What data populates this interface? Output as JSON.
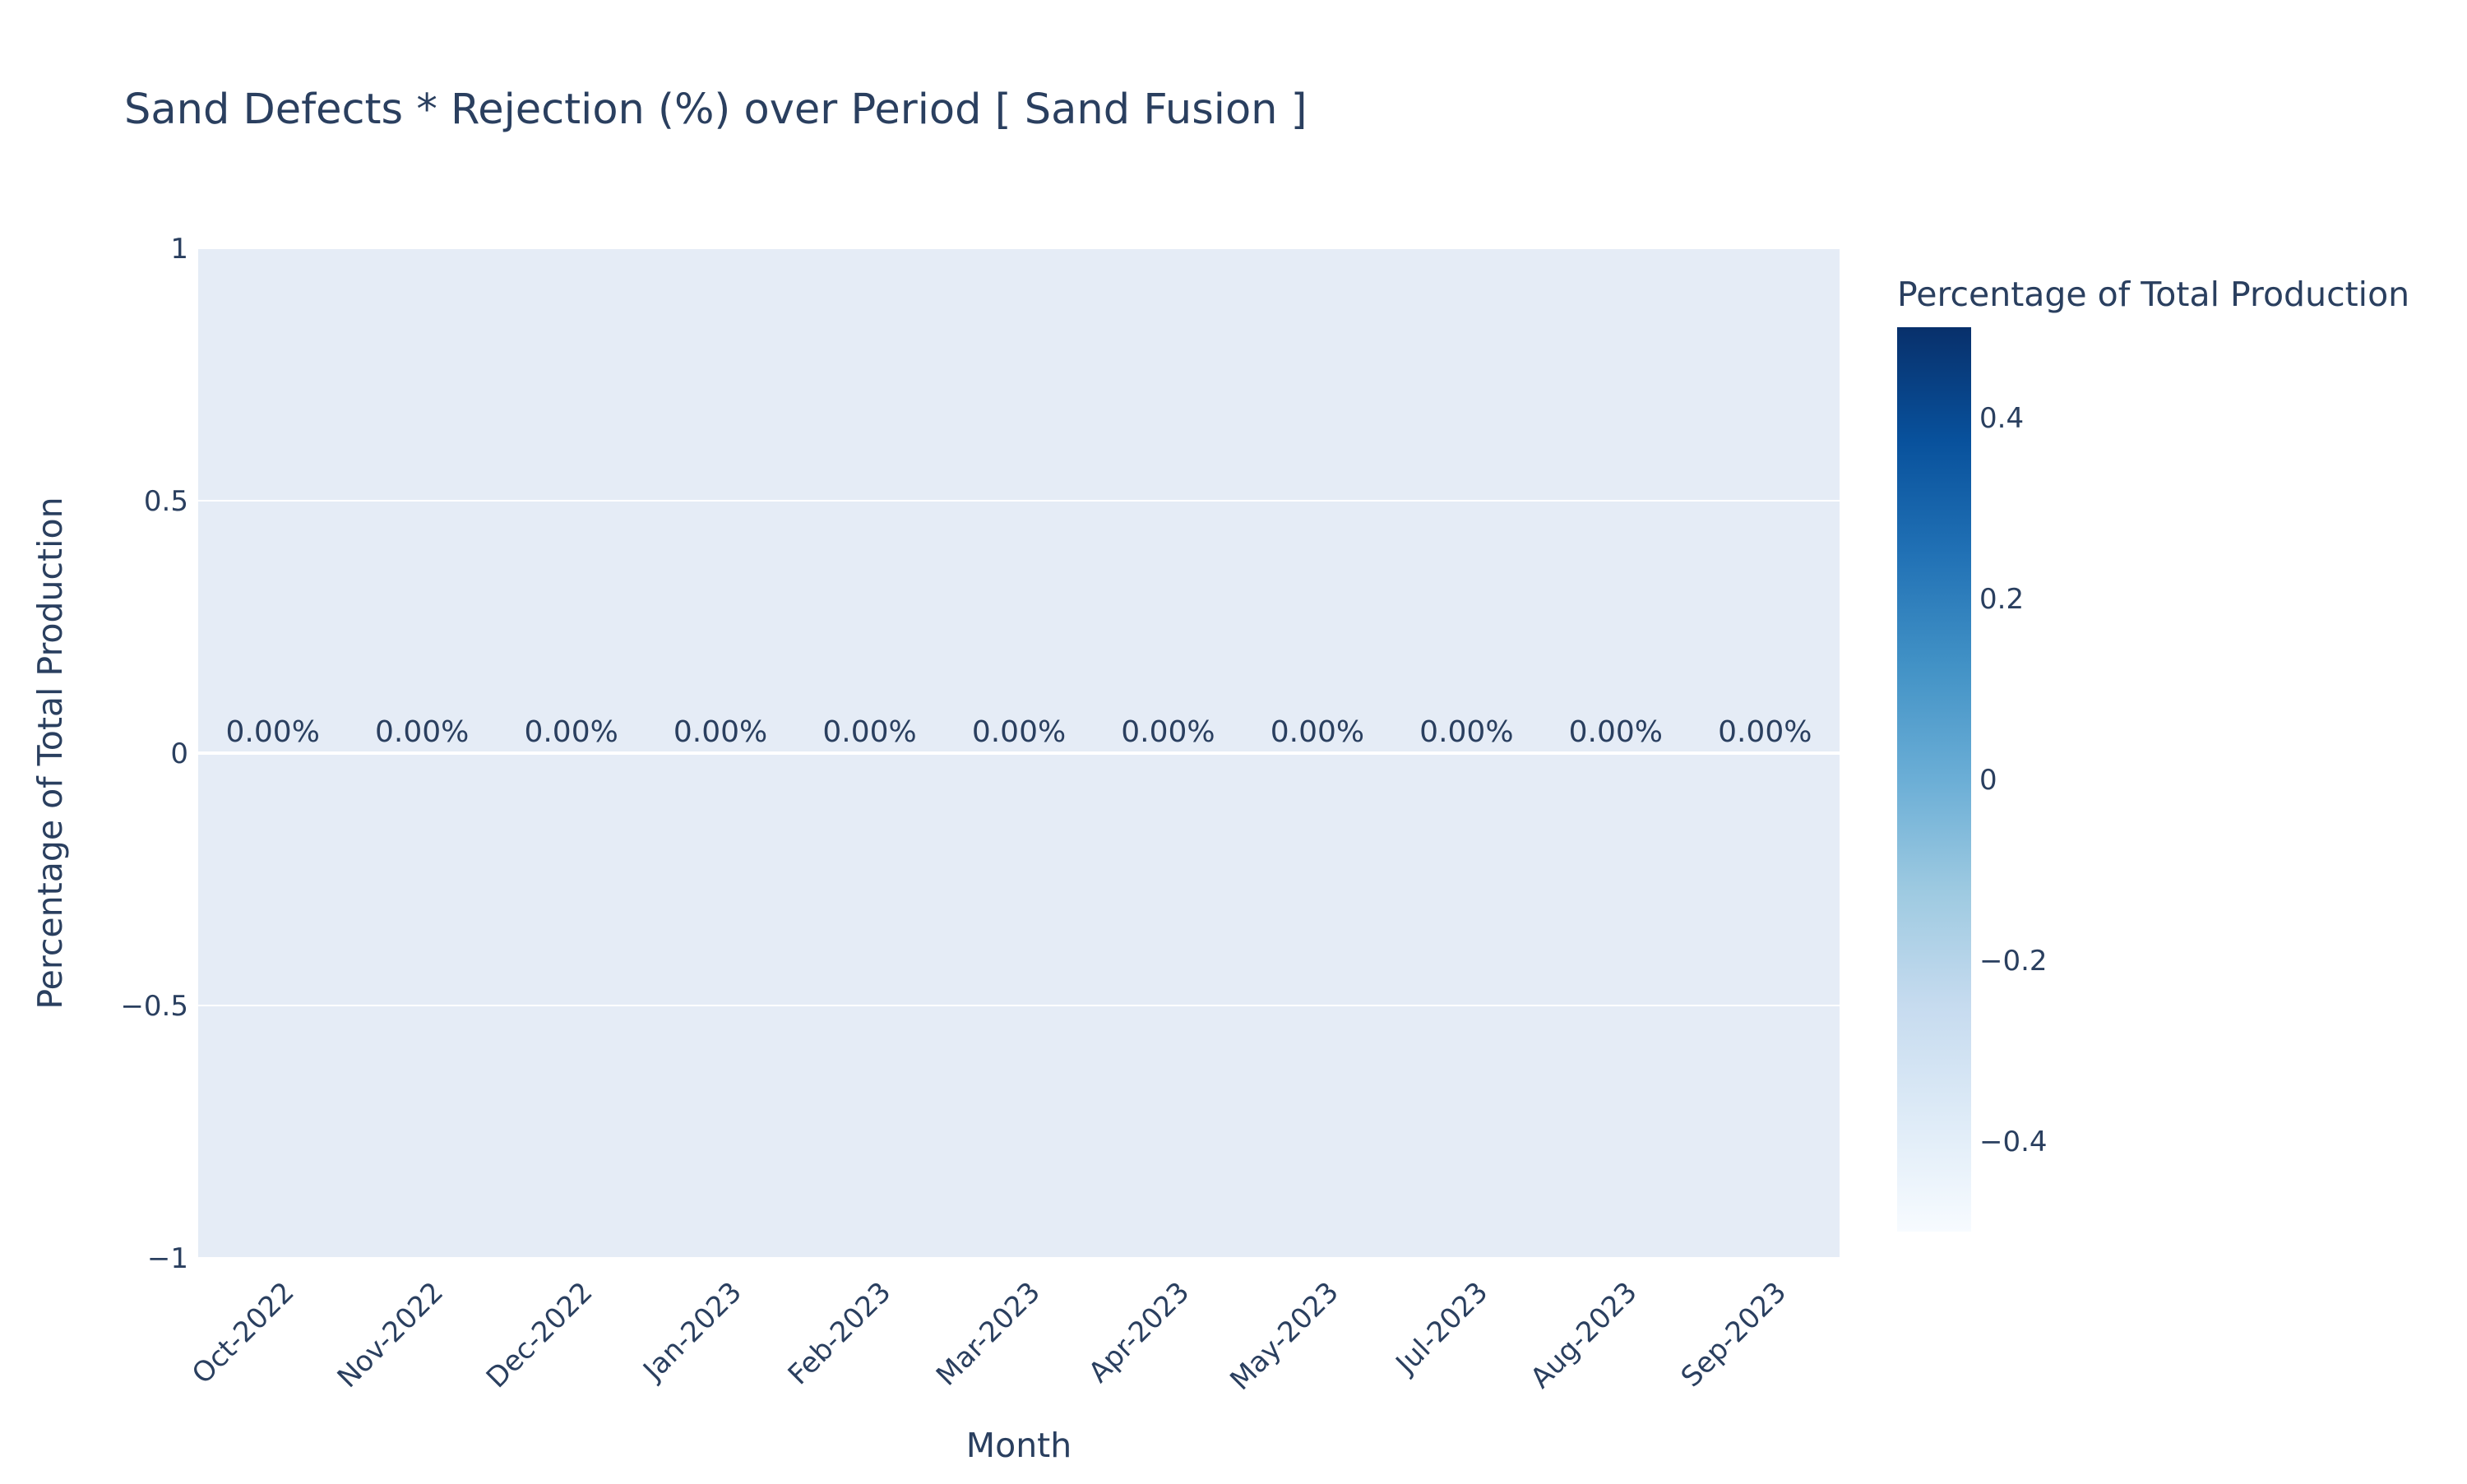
{
  "chart_data": {
    "type": "bar",
    "title": "Sand Defects * Rejection (%) over Period [ Sand Fusion ]",
    "xlabel": "Month",
    "ylabel": "Percentage of Total Production",
    "categories": [
      "Oct-2022",
      "Nov-2022",
      "Dec-2022",
      "Jan-2023",
      "Feb-2023",
      "Mar-2023",
      "Apr-2023",
      "May-2023",
      "Jul-2023",
      "Aug-2023",
      "Sep-2023"
    ],
    "values": [
      0,
      0,
      0,
      0,
      0,
      0,
      0,
      0,
      0,
      0,
      0
    ],
    "data_labels": [
      "0.00%",
      "0.00%",
      "0.00%",
      "0.00%",
      "0.00%",
      "0.00%",
      "0.00%",
      "0.00%",
      "0.00%",
      "0.00%",
      "0.00%"
    ],
    "ylim": [
      -1,
      1
    ],
    "yticks": [
      1,
      0.5,
      0,
      -0.5,
      -1
    ],
    "ytick_labels": [
      "1",
      "0.5",
      "0",
      "−0.5",
      "−1"
    ],
    "grid": true,
    "colorbar": {
      "title": "Percentage of Total Production",
      "range": [
        -0.5,
        0.5
      ],
      "ticks": [
        0.4,
        0.2,
        0,
        -0.2,
        -0.4
      ],
      "tick_labels": [
        "0.4",
        "0.2",
        "0",
        "−0.2",
        "−0.4"
      ],
      "colorscale": [
        "#f7fbff",
        "#deebf7",
        "#c6dbef",
        "#9ecae1",
        "#6baed6",
        "#4292c6",
        "#2171b5",
        "#08519c",
        "#08306b"
      ],
      "placement": "right"
    },
    "plot_background": "#e5ecf6"
  }
}
